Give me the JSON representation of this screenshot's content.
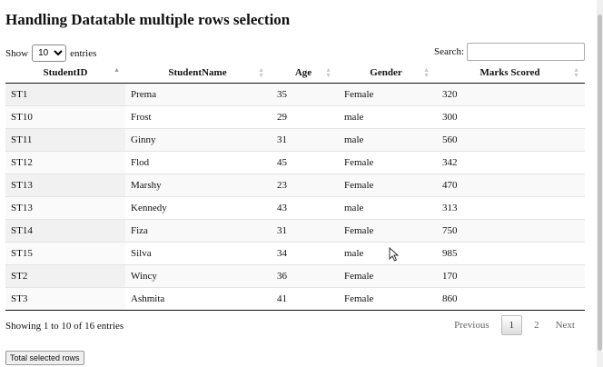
{
  "title": "Handling Datatable multiple rows selection",
  "length": {
    "show_label": "Show",
    "selected": "10",
    "entries_label": "entries"
  },
  "search": {
    "label": "Search:",
    "value": ""
  },
  "columns": [
    "StudentID",
    "StudentName",
    "Age",
    "Gender",
    "Marks Scored"
  ],
  "rows": [
    [
      "ST1",
      "Prema",
      "35",
      "Female",
      "320"
    ],
    [
      "ST10",
      "Frost",
      "29",
      "male",
      "300"
    ],
    [
      "ST11",
      "Ginny",
      "31",
      "male",
      "560"
    ],
    [
      "ST12",
      "Flod",
      "45",
      "Female",
      "342"
    ],
    [
      "ST13",
      "Marshy",
      "23",
      "Female",
      "470"
    ],
    [
      "ST13",
      "Kennedy",
      "43",
      "male",
      "313"
    ],
    [
      "ST14",
      "Fiza",
      "31",
      "Female",
      "750"
    ],
    [
      "ST15",
      "Silva",
      "34",
      "male",
      "985"
    ],
    [
      "ST2",
      "Wincy",
      "36",
      "Female",
      "170"
    ],
    [
      "ST3",
      "Ashmita",
      "41",
      "Female",
      "860"
    ]
  ],
  "info": "Showing 1 to 10 of 16 entries",
  "pagination": {
    "previous": "Previous",
    "pages": [
      "1",
      "2"
    ],
    "current": "1",
    "next": "Next"
  },
  "total_button": "Total selected rows",
  "icons": {
    "sort_asc": "sort-ascending-icon",
    "sort_both": "sort-both-icon",
    "cursor": "mouse-cursor-icon"
  }
}
